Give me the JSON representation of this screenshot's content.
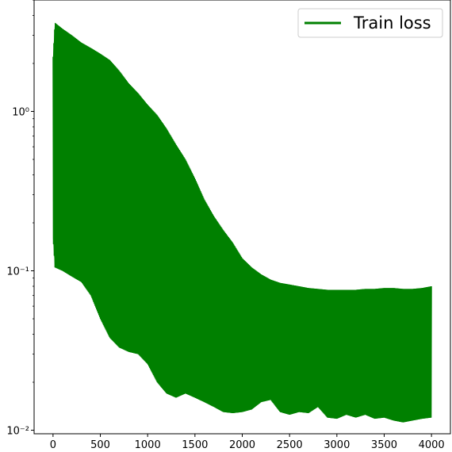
{
  "chart_data": {
    "type": "line",
    "title": "",
    "xlabel": "",
    "ylabel": "",
    "yscale": "log",
    "xlim": [
      -200,
      4200
    ],
    "ylim": [
      0.0095,
      5.0
    ],
    "xticks": [
      0,
      500,
      1000,
      1500,
      2000,
      2500,
      3000,
      3500,
      4000
    ],
    "xtick_labels": [
      "0",
      "500",
      "1000",
      "1500",
      "2000",
      "2500",
      "3000",
      "3500",
      "4000"
    ],
    "yticks": [
      0.01,
      0.1,
      1
    ],
    "ytick_labels": [
      "10⁻²",
      "10⁻¹",
      "10⁰"
    ],
    "grid": false,
    "legend_position": "top-right",
    "series": [
      {
        "name": "Train loss",
        "color": "#008000",
        "description_of_shape": "rapidly oscillating loss; upper and lower envelopes",
        "upper_envelope": {
          "x": [
            0,
            20,
            100,
            200,
            300,
            400,
            500,
            600,
            700,
            800,
            900,
            1000,
            1100,
            1200,
            1300,
            1400,
            1500,
            1600,
            1700,
            1800,
            1900,
            2000,
            2100,
            2200,
            2300,
            2400,
            2500,
            2600,
            2700,
            2800,
            2900,
            3000,
            3100,
            3200,
            3300,
            3400,
            3500,
            3600,
            3700,
            3800,
            3900,
            4000
          ],
          "y": [
            2.2,
            3.6,
            3.3,
            3.0,
            2.7,
            2.5,
            2.3,
            2.1,
            1.8,
            1.5,
            1.3,
            1.1,
            0.95,
            0.78,
            0.62,
            0.5,
            0.38,
            0.28,
            0.22,
            0.18,
            0.15,
            0.12,
            0.105,
            0.095,
            0.088,
            0.084,
            0.082,
            0.08,
            0.078,
            0.077,
            0.076,
            0.076,
            0.076,
            0.076,
            0.077,
            0.077,
            0.078,
            0.078,
            0.077,
            0.077,
            0.078,
            0.08
          ]
        },
        "lower_envelope": {
          "x": [
            0,
            20,
            100,
            200,
            300,
            400,
            500,
            600,
            700,
            800,
            900,
            1000,
            1100,
            1200,
            1300,
            1400,
            1500,
            1600,
            1700,
            1800,
            1900,
            2000,
            2100,
            2200,
            2300,
            2400,
            2500,
            2600,
            2700,
            2800,
            2900,
            3000,
            3100,
            3200,
            3300,
            3400,
            3500,
            3600,
            3700,
            3800,
            3900,
            4000
          ],
          "y": [
            0.16,
            0.105,
            0.1,
            0.092,
            0.085,
            0.07,
            0.05,
            0.038,
            0.033,
            0.031,
            0.03,
            0.026,
            0.02,
            0.017,
            0.016,
            0.017,
            0.016,
            0.015,
            0.014,
            0.013,
            0.0128,
            0.013,
            0.0135,
            0.015,
            0.0155,
            0.013,
            0.0125,
            0.013,
            0.0128,
            0.014,
            0.012,
            0.0118,
            0.0125,
            0.012,
            0.0125,
            0.0118,
            0.012,
            0.0115,
            0.0112,
            0.0115,
            0.0118,
            0.012
          ]
        }
      }
    ]
  }
}
